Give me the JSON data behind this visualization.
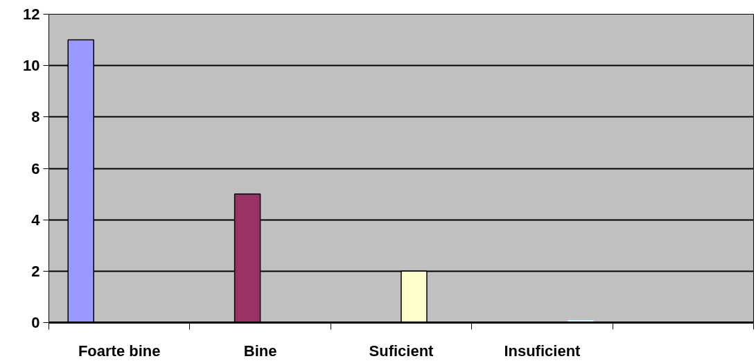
{
  "chart_data": {
    "type": "bar",
    "categories": [
      "Foarte bine",
      "Bine",
      "Suficient",
      "Insuficient",
      null
    ],
    "series": [
      {
        "color": "#9999ff",
        "values": [
          11,
          null,
          null,
          null,
          null
        ]
      },
      {
        "color": "#993366",
        "values": [
          null,
          5,
          null,
          null,
          null
        ]
      },
      {
        "color": "#ffffcc",
        "values": [
          null,
          null,
          2,
          null,
          null
        ]
      },
      {
        "color": "#ccffff",
        "values": [
          null,
          null,
          null,
          0,
          null
        ]
      }
    ],
    "ylim": [
      0,
      12
    ],
    "yticks": [
      0,
      2,
      4,
      6,
      8,
      10,
      12
    ],
    "grid": "y"
  }
}
